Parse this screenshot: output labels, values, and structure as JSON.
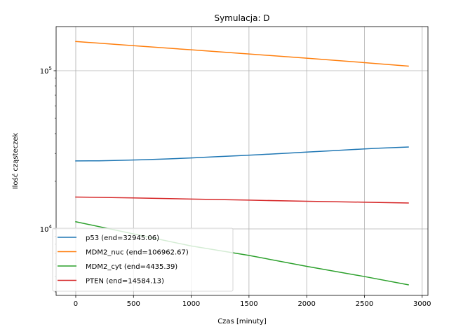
{
  "chart_data": {
    "type": "line",
    "title": "Symulacja: D",
    "xlabel": "Czas [minuty]",
    "ylabel": "Ilość cząsteczek",
    "yscale": "log",
    "xlim": [
      -170,
      3050
    ],
    "ylim": [
      3800,
      190000
    ],
    "grid": true,
    "legend_position": "lower-left",
    "x_ticks": [
      0,
      500,
      1000,
      1500,
      2000,
      2500,
      3000
    ],
    "y_major_ticks": [
      {
        "value": 10000,
        "base": "10",
        "exp": "4"
      },
      {
        "value": 100000,
        "base": "10",
        "exp": "5"
      }
    ],
    "y_minor_ticks": [
      4000,
      5000,
      6000,
      7000,
      8000,
      9000,
      20000,
      30000,
      40000,
      50000,
      60000,
      70000,
      80000,
      90000
    ],
    "series": [
      {
        "name": "p53 (end=32945.06)",
        "color": "#1f77b4",
        "x": [
          0,
          200,
          400,
          600,
          800,
          1000,
          1200,
          1400,
          1600,
          1800,
          2000,
          2200,
          2400,
          2600,
          2880
        ],
        "y": [
          26900,
          26950,
          27150,
          27400,
          27700,
          28100,
          28550,
          29000,
          29500,
          30000,
          30600,
          31150,
          31750,
          32300,
          32945.06
        ]
      },
      {
        "name": "MDM2_nuc (end=106962.67)",
        "color": "#ff7f0e",
        "x": [
          0,
          500,
          1000,
          1500,
          2000,
          2500,
          2880
        ],
        "y": [
          153000,
          144000,
          135500,
          127500,
          120000,
          112500,
          106962.67
        ]
      },
      {
        "name": "MDM2_cyt (end=4435.39)",
        "color": "#2ca02c",
        "x": [
          0,
          500,
          1000,
          1500,
          2000,
          2500,
          2880
        ],
        "y": [
          11100,
          9300,
          7800,
          6800,
          5800,
          5000,
          4435.39
        ]
      },
      {
        "name": "PTEN (end=14584.13)",
        "color": "#d62728",
        "x": [
          0,
          500,
          1000,
          1500,
          2000,
          2500,
          2880
        ],
        "y": [
          15900,
          15700,
          15450,
          15200,
          14950,
          14750,
          14584.13
        ]
      }
    ]
  }
}
